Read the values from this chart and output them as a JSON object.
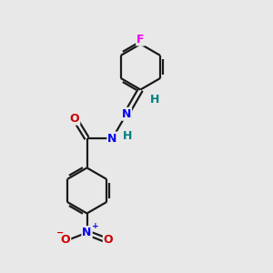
{
  "background_color": "#e8e8e8",
  "bond_color": "#1a1a1a",
  "atom_colors": {
    "F": "#ee00ee",
    "N": "#0000ee",
    "O": "#cc0000",
    "H": "#008080"
  },
  "figsize": [
    3.0,
    3.0
  ],
  "dpi": 100,
  "lw": 1.6,
  "ring_r": 0.85,
  "xlim": [
    0,
    10
  ],
  "ylim": [
    0,
    10
  ]
}
